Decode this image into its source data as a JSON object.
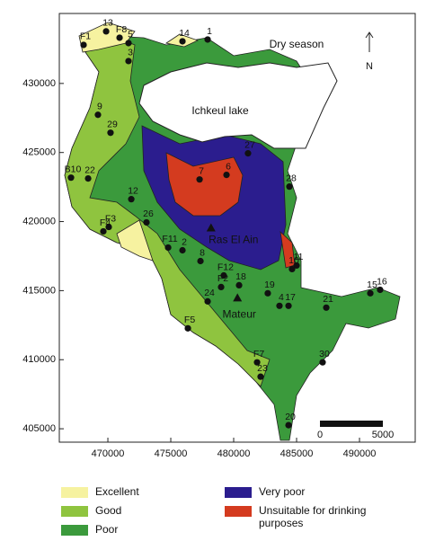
{
  "map": {
    "title": "Dry season",
    "lake_label": "Ichkeul lake",
    "north_label": "N",
    "xlim": [
      466140,
      494430
    ],
    "ylim": [
      404030,
      435065
    ],
    "xticks": [
      470000,
      475000,
      480000,
      485000,
      490000
    ],
    "yticks": [
      405000,
      410000,
      415000,
      420000,
      425000,
      430000
    ],
    "scalebar": [
      0,
      5000
    ],
    "landmarks": [
      {
        "label": "Ras El Ain",
        "x": 478200,
        "y": 419550
      },
      {
        "label": "Mateur",
        "x": 480300,
        "y": 414480
      }
    ],
    "points": [
      {
        "label": "F1",
        "x": 468070,
        "y": 432790
      },
      {
        "label": "13",
        "x": 469860,
        "y": 433770
      },
      {
        "label": "F8",
        "x": 470930,
        "y": 433310
      },
      {
        "label": "5",
        "x": 471640,
        "y": 432920
      },
      {
        "label": "14",
        "x": 475930,
        "y": 433050
      },
      {
        "label": "1",
        "x": 477930,
        "y": 433180
      },
      {
        "label": "3",
        "x": 471640,
        "y": 431620
      },
      {
        "label": "9",
        "x": 469210,
        "y": 427730
      },
      {
        "label": "29",
        "x": 470210,
        "y": 426430
      },
      {
        "label": "B10",
        "x": 467070,
        "y": 423180
      },
      {
        "label": "22",
        "x": 468430,
        "y": 423120
      },
      {
        "label": "12",
        "x": 471860,
        "y": 421620
      },
      {
        "label": "26",
        "x": 473070,
        "y": 419940
      },
      {
        "label": "F3",
        "x": 470070,
        "y": 419610
      },
      {
        "label": "F4",
        "x": 469640,
        "y": 419290
      },
      {
        "label": "7",
        "x": 477290,
        "y": 423050
      },
      {
        "label": "6",
        "x": 479430,
        "y": 423380
      },
      {
        "label": "27",
        "x": 481140,
        "y": 424940
      },
      {
        "label": "28",
        "x": 484430,
        "y": 422530
      },
      {
        "label": "F11",
        "x": 474790,
        "y": 418120
      },
      {
        "label": "2",
        "x": 475930,
        "y": 417920
      },
      {
        "label": "8",
        "x": 477360,
        "y": 417140
      },
      {
        "label": "11",
        "x": 485000,
        "y": 416820
      },
      {
        "label": "10",
        "x": 484640,
        "y": 416560
      },
      {
        "label": "F12",
        "x": 479210,
        "y": 416100
      },
      {
        "label": "18",
        "x": 480430,
        "y": 415390
      },
      {
        "label": "F2",
        "x": 479000,
        "y": 415260
      },
      {
        "label": "24",
        "x": 477930,
        "y": 414220
      },
      {
        "label": "19",
        "x": 482710,
        "y": 414810
      },
      {
        "label": "4",
        "x": 483640,
        "y": 413900
      },
      {
        "label": "17",
        "x": 484360,
        "y": 413900
      },
      {
        "label": "21",
        "x": 487360,
        "y": 413770
      },
      {
        "label": "15",
        "x": 490860,
        "y": 414810
      },
      {
        "label": "16",
        "x": 491640,
        "y": 415060
      },
      {
        "label": "F5",
        "x": 476360,
        "y": 412270
      },
      {
        "label": "F7",
        "x": 481860,
        "y": 409810
      },
      {
        "label": "23",
        "x": 482140,
        "y": 408770
      },
      {
        "label": "30",
        "x": 487070,
        "y": 409810
      },
      {
        "label": "20",
        "x": 484360,
        "y": 405260
      }
    ],
    "legend": [
      {
        "label": "Excellent",
        "color": "#f6f2a0"
      },
      {
        "label": "Good",
        "color": "#8fc43f"
      },
      {
        "label": "Poor",
        "color": "#3b9a3c"
      },
      {
        "label": "Very poor",
        "color": "#2b1d8e"
      },
      {
        "label": "Unsuitable for drinking purposes",
        "color": "#d43b1f"
      }
    ]
  }
}
